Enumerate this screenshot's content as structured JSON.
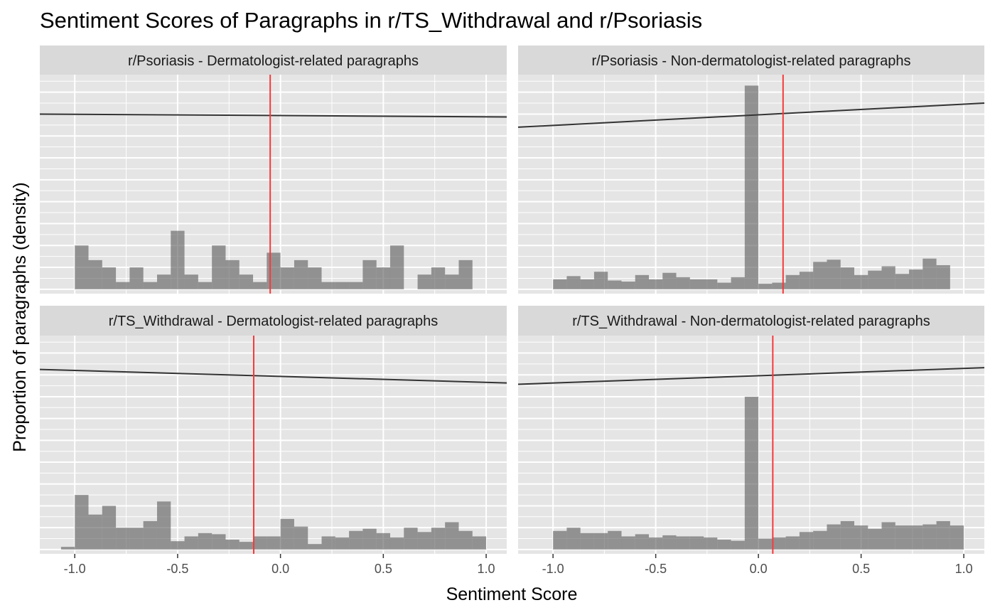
{
  "chart_data": {
    "type": "bar",
    "title": "Sentiment Scores of Paragraphs in r/TS_Withdrawal and r/Psoriasis",
    "xlabel": "Sentiment Score",
    "ylabel": "Proportion of paragraphs (density)",
    "xlim": [
      -1.17,
      1.1
    ],
    "ylim": [
      -0.2,
      9.8
    ],
    "bin_width": 0.0667,
    "x_ticks": [
      -1.0,
      -0.5,
      0.0,
      0.5,
      1.0
    ],
    "x_tick_labels": [
      "-1.0",
      "-0.5",
      "0.0",
      "0.5",
      "1.0"
    ],
    "y_axis_labels_shown": false,
    "grid": true,
    "bar_color": "#595959",
    "mean_line_color": "#f8393a",
    "trend_line_color": "#333333",
    "panel_background": "#e5e5e5",
    "strip_background": "#d9d9d9",
    "panels": [
      {
        "label": "r/Psoriasis - Dermatologist-related paragraphs",
        "bins": [
          {
            "x": -1.0,
            "density": 2.0
          },
          {
            "x": -0.9333,
            "density": 1.33
          },
          {
            "x": -0.8667,
            "density": 1.0
          },
          {
            "x": -0.8,
            "density": 0.33
          },
          {
            "x": -0.7333,
            "density": 1.0
          },
          {
            "x": -0.6667,
            "density": 0.33
          },
          {
            "x": -0.6,
            "density": 0.67
          },
          {
            "x": -0.5333,
            "density": 2.67
          },
          {
            "x": -0.4667,
            "density": 0.67
          },
          {
            "x": -0.4,
            "density": 0.33
          },
          {
            "x": -0.3333,
            "density": 2.0
          },
          {
            "x": -0.2667,
            "density": 1.33
          },
          {
            "x": -0.2,
            "density": 0.67
          },
          {
            "x": -0.1333,
            "density": 0.33
          },
          {
            "x": -0.0667,
            "density": 1.67
          },
          {
            "x": 0.0,
            "density": 1.0
          },
          {
            "x": 0.0667,
            "density": 1.33
          },
          {
            "x": 0.1333,
            "density": 1.0
          },
          {
            "x": 0.2,
            "density": 0.33
          },
          {
            "x": 0.2667,
            "density": 0.33
          },
          {
            "x": 0.3333,
            "density": 0.33
          },
          {
            "x": 0.4,
            "density": 1.33
          },
          {
            "x": 0.4667,
            "density": 1.0
          },
          {
            "x": 0.5333,
            "density": 2.0
          },
          {
            "x": 0.6,
            "density": 0.0
          },
          {
            "x": 0.6667,
            "density": 0.67
          },
          {
            "x": 0.7333,
            "density": 1.0
          },
          {
            "x": 0.8,
            "density": 0.67
          },
          {
            "x": 0.8667,
            "density": 1.33
          }
        ],
        "mean_sentiment": -0.05,
        "trend_line": {
          "y_at_xmin": 8.0,
          "y_at_xmax": 7.87
        }
      },
      {
        "label": "r/Psoriasis - Non-dermatologist-related paragraphs",
        "bins": [
          {
            "x": -1.0,
            "density": 0.45
          },
          {
            "x": -0.9333,
            "density": 0.6
          },
          {
            "x": -0.8667,
            "density": 0.45
          },
          {
            "x": -0.8,
            "density": 0.8
          },
          {
            "x": -0.7333,
            "density": 0.4
          },
          {
            "x": -0.6667,
            "density": 0.35
          },
          {
            "x": -0.6,
            "density": 0.65
          },
          {
            "x": -0.5333,
            "density": 0.45
          },
          {
            "x": -0.4667,
            "density": 0.75
          },
          {
            "x": -0.4,
            "density": 0.55
          },
          {
            "x": -0.3333,
            "density": 0.45
          },
          {
            "x": -0.2667,
            "density": 0.45
          },
          {
            "x": -0.2,
            "density": 0.3
          },
          {
            "x": -0.1333,
            "density": 0.55
          },
          {
            "x": -0.0667,
            "density": 9.3
          },
          {
            "x": 0.0,
            "density": 0.25
          },
          {
            "x": 0.0667,
            "density": 0.3
          },
          {
            "x": 0.1333,
            "density": 0.65
          },
          {
            "x": 0.2,
            "density": 0.8
          },
          {
            "x": 0.2667,
            "density": 1.25
          },
          {
            "x": 0.3333,
            "density": 1.35
          },
          {
            "x": 0.4,
            "density": 1.0
          },
          {
            "x": 0.4667,
            "density": 0.65
          },
          {
            "x": 0.5333,
            "density": 0.85
          },
          {
            "x": 0.6,
            "density": 1.05
          },
          {
            "x": 0.6667,
            "density": 0.7
          },
          {
            "x": 0.7333,
            "density": 0.9
          },
          {
            "x": 0.8,
            "density": 1.4
          },
          {
            "x": 0.8667,
            "density": 1.1
          }
        ],
        "mean_sentiment": 0.12,
        "trend_line": {
          "y_at_xmin": 7.4,
          "y_at_xmax": 8.5
        }
      },
      {
        "label": "r/TS_Withdrawal - Dermatologist-related paragraphs",
        "bins": [
          {
            "x": -1.0667,
            "density": 0.12
          },
          {
            "x": -1.0,
            "density": 2.5
          },
          {
            "x": -0.9333,
            "density": 1.6
          },
          {
            "x": -0.8667,
            "density": 2.0
          },
          {
            "x": -0.8,
            "density": 1.0
          },
          {
            "x": -0.7333,
            "density": 1.0
          },
          {
            "x": -0.6667,
            "density": 1.3
          },
          {
            "x": -0.6,
            "density": 2.2
          },
          {
            "x": -0.5333,
            "density": 0.38
          },
          {
            "x": -0.4667,
            "density": 0.6
          },
          {
            "x": -0.4,
            "density": 0.75
          },
          {
            "x": -0.3333,
            "density": 0.7
          },
          {
            "x": -0.2667,
            "density": 0.45
          },
          {
            "x": -0.2,
            "density": 0.35
          },
          {
            "x": -0.1333,
            "density": 0.6
          },
          {
            "x": -0.0667,
            "density": 0.6
          },
          {
            "x": 0.0,
            "density": 1.4
          },
          {
            "x": 0.0667,
            "density": 1.05
          },
          {
            "x": 0.1333,
            "density": 0.25
          },
          {
            "x": 0.2,
            "density": 0.6
          },
          {
            "x": 0.2667,
            "density": 0.55
          },
          {
            "x": 0.3333,
            "density": 0.85
          },
          {
            "x": 0.4,
            "density": 0.95
          },
          {
            "x": 0.4667,
            "density": 0.75
          },
          {
            "x": 0.5333,
            "density": 0.55
          },
          {
            "x": 0.6,
            "density": 1.0
          },
          {
            "x": 0.6667,
            "density": 0.8
          },
          {
            "x": 0.7333,
            "density": 1.0
          },
          {
            "x": 0.8,
            "density": 1.25
          },
          {
            "x": 0.8667,
            "density": 0.85
          },
          {
            "x": 0.9333,
            "density": 0.6
          }
        ],
        "mean_sentiment": -0.13,
        "trend_line": {
          "y_at_xmin": 8.25,
          "y_at_xmax": 7.63
        }
      },
      {
        "label": "r/TS_Withdrawal - Non-dermatologist-related paragraphs",
        "bins": [
          {
            "x": -1.0,
            "density": 0.85
          },
          {
            "x": -0.9333,
            "density": 1.0
          },
          {
            "x": -0.8667,
            "density": 0.75
          },
          {
            "x": -0.8,
            "density": 0.75
          },
          {
            "x": -0.7333,
            "density": 0.85
          },
          {
            "x": -0.6667,
            "density": 0.6
          },
          {
            "x": -0.6,
            "density": 0.7
          },
          {
            "x": -0.5333,
            "density": 0.55
          },
          {
            "x": -0.4667,
            "density": 0.65
          },
          {
            "x": -0.4,
            "density": 0.6
          },
          {
            "x": -0.3333,
            "density": 0.6
          },
          {
            "x": -0.2667,
            "density": 0.55
          },
          {
            "x": -0.2,
            "density": 0.45
          },
          {
            "x": -0.1333,
            "density": 0.4
          },
          {
            "x": -0.0667,
            "density": 7.0
          },
          {
            "x": 0.0,
            "density": 0.5
          },
          {
            "x": 0.0667,
            "density": 0.55
          },
          {
            "x": 0.1333,
            "density": 0.6
          },
          {
            "x": 0.2,
            "density": 0.8
          },
          {
            "x": 0.2667,
            "density": 0.85
          },
          {
            "x": 0.3333,
            "density": 1.15
          },
          {
            "x": 0.4,
            "density": 1.3
          },
          {
            "x": 0.4667,
            "density": 1.1
          },
          {
            "x": 0.5333,
            "density": 0.95
          },
          {
            "x": 0.6,
            "density": 1.25
          },
          {
            "x": 0.6667,
            "density": 1.1
          },
          {
            "x": 0.7333,
            "density": 1.1
          },
          {
            "x": 0.8,
            "density": 1.15
          },
          {
            "x": 0.8667,
            "density": 1.3
          },
          {
            "x": 0.9333,
            "density": 1.1
          }
        ],
        "mean_sentiment": 0.07,
        "trend_line": {
          "y_at_xmin": 7.57,
          "y_at_xmax": 8.33
        }
      }
    ]
  }
}
